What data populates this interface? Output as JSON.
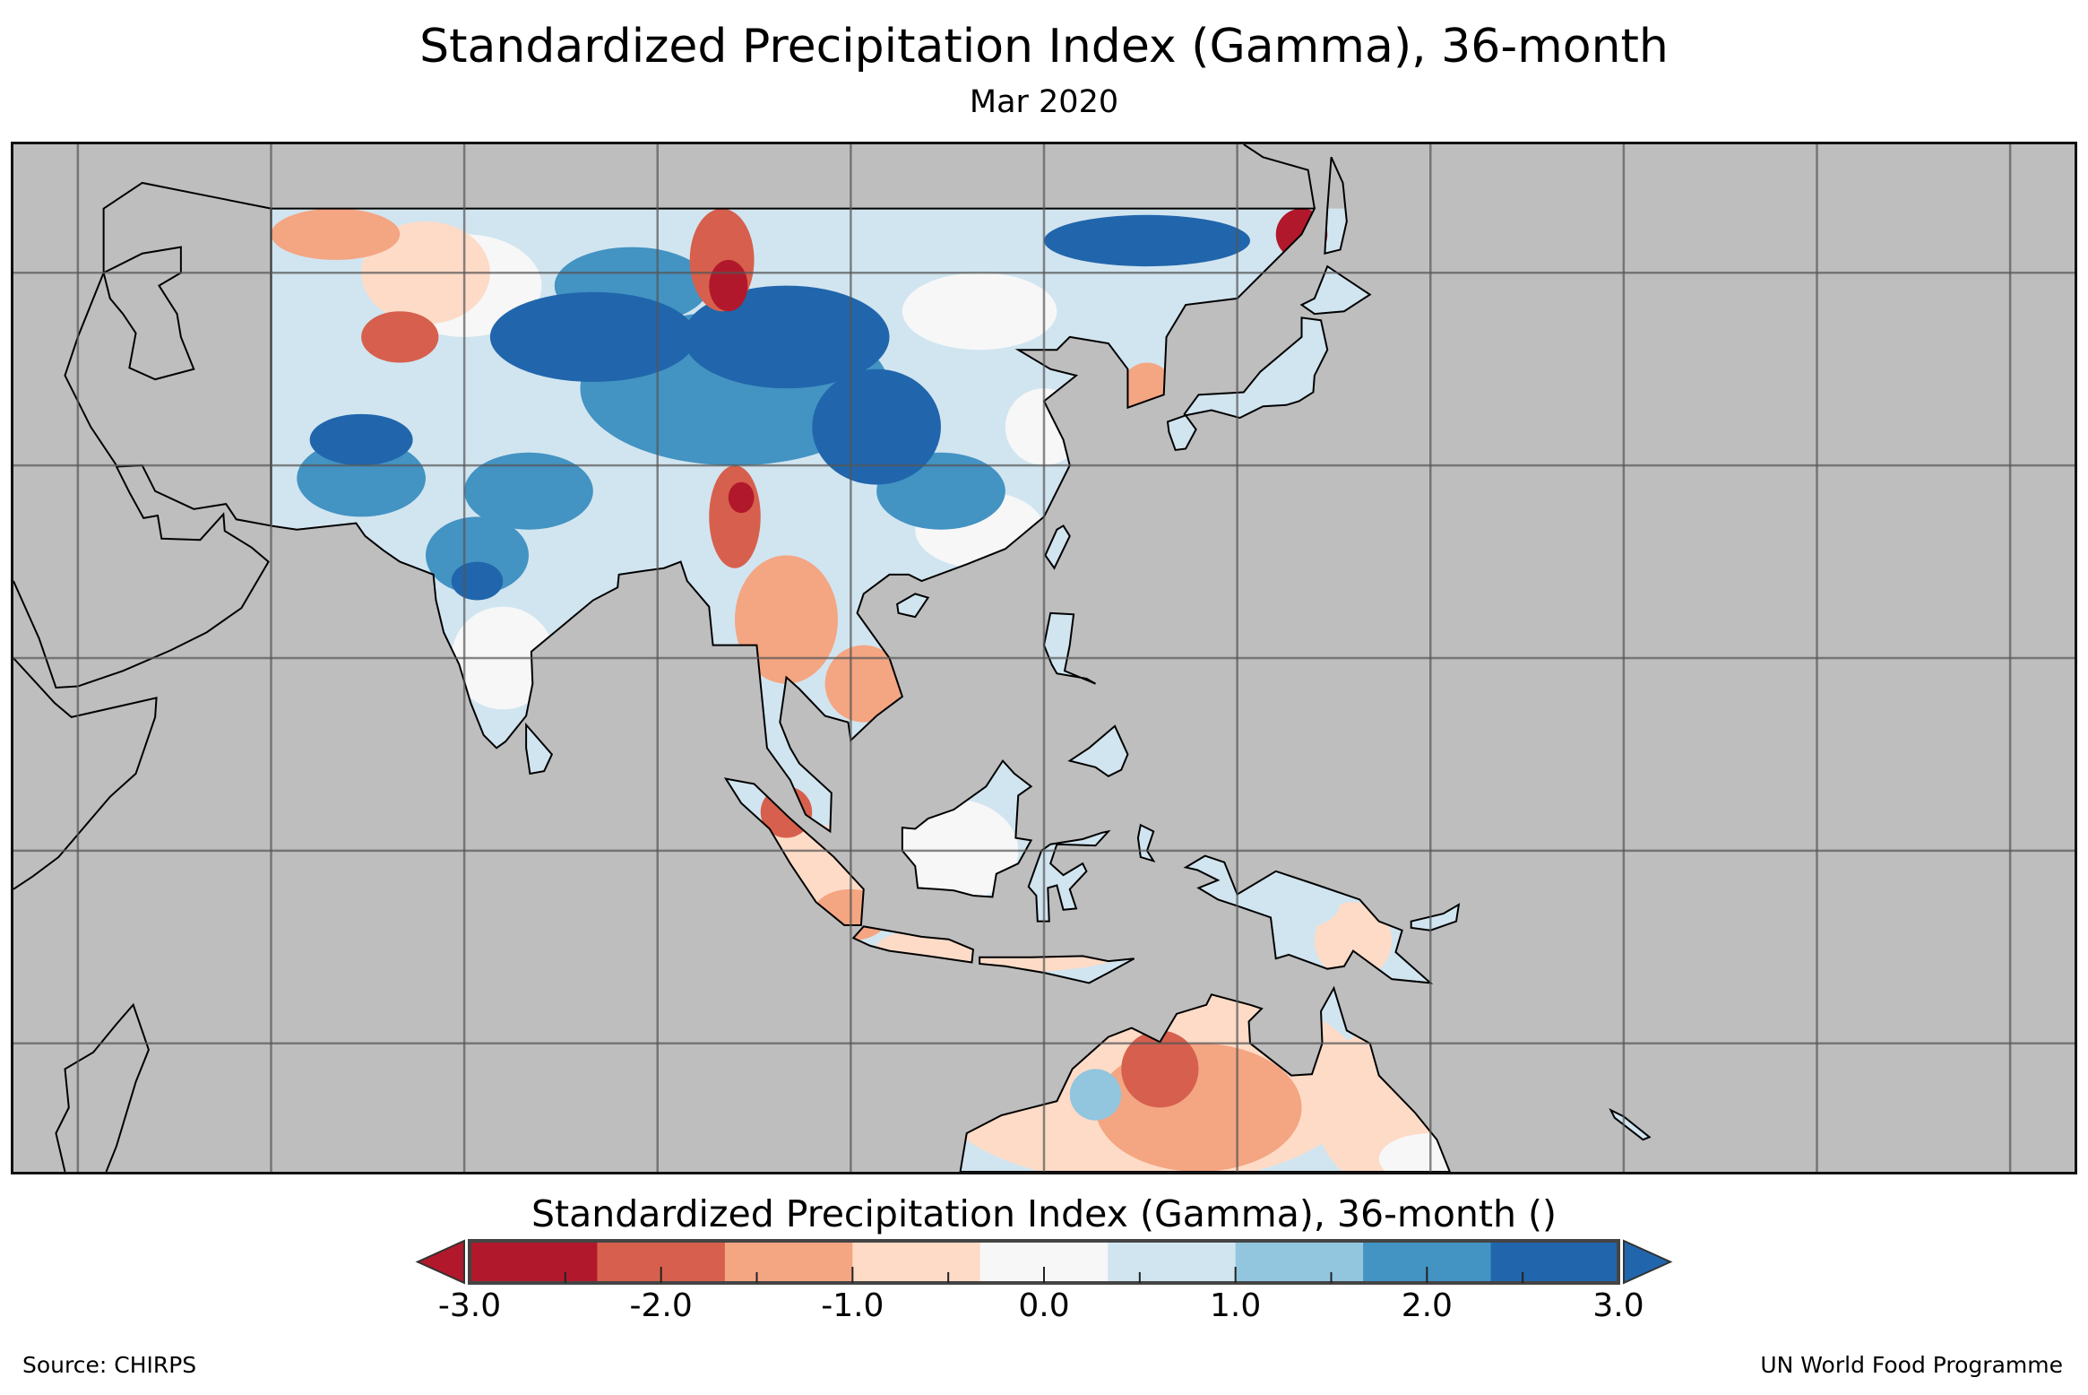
{
  "title": "Standardized Precipitation Index (Gamma), 36-month",
  "subtitle": "Mar 2020",
  "colorbar": {
    "title": "Standardized Precipitation Index (Gamma), 36-month ()",
    "range": [
      -3.0,
      3.0
    ],
    "ticks": [
      "-3.0",
      "-2.0",
      "-1.0",
      "0.0",
      "1.0",
      "2.0",
      "3.0"
    ],
    "tick_values": [
      -3,
      -2,
      -1,
      0,
      1,
      2,
      3
    ],
    "colors": [
      "#b2182b",
      "#d6604d",
      "#f4a582",
      "#fddbc7",
      "#f7f7f7",
      "#d1e5f0",
      "#92c5de",
      "#4393c3",
      "#2166ac"
    ],
    "under_color": "#b2182b",
    "over_color": "#2166ac"
  },
  "map": {
    "background_color": "#bebebe",
    "extent_lon": [
      40,
      200
    ],
    "extent_lat": [
      -25,
      55
    ],
    "grid_spacing_deg": 15
  },
  "footer": {
    "source": "Source: CHIRPS",
    "credit": "UN World Food Programme"
  }
}
